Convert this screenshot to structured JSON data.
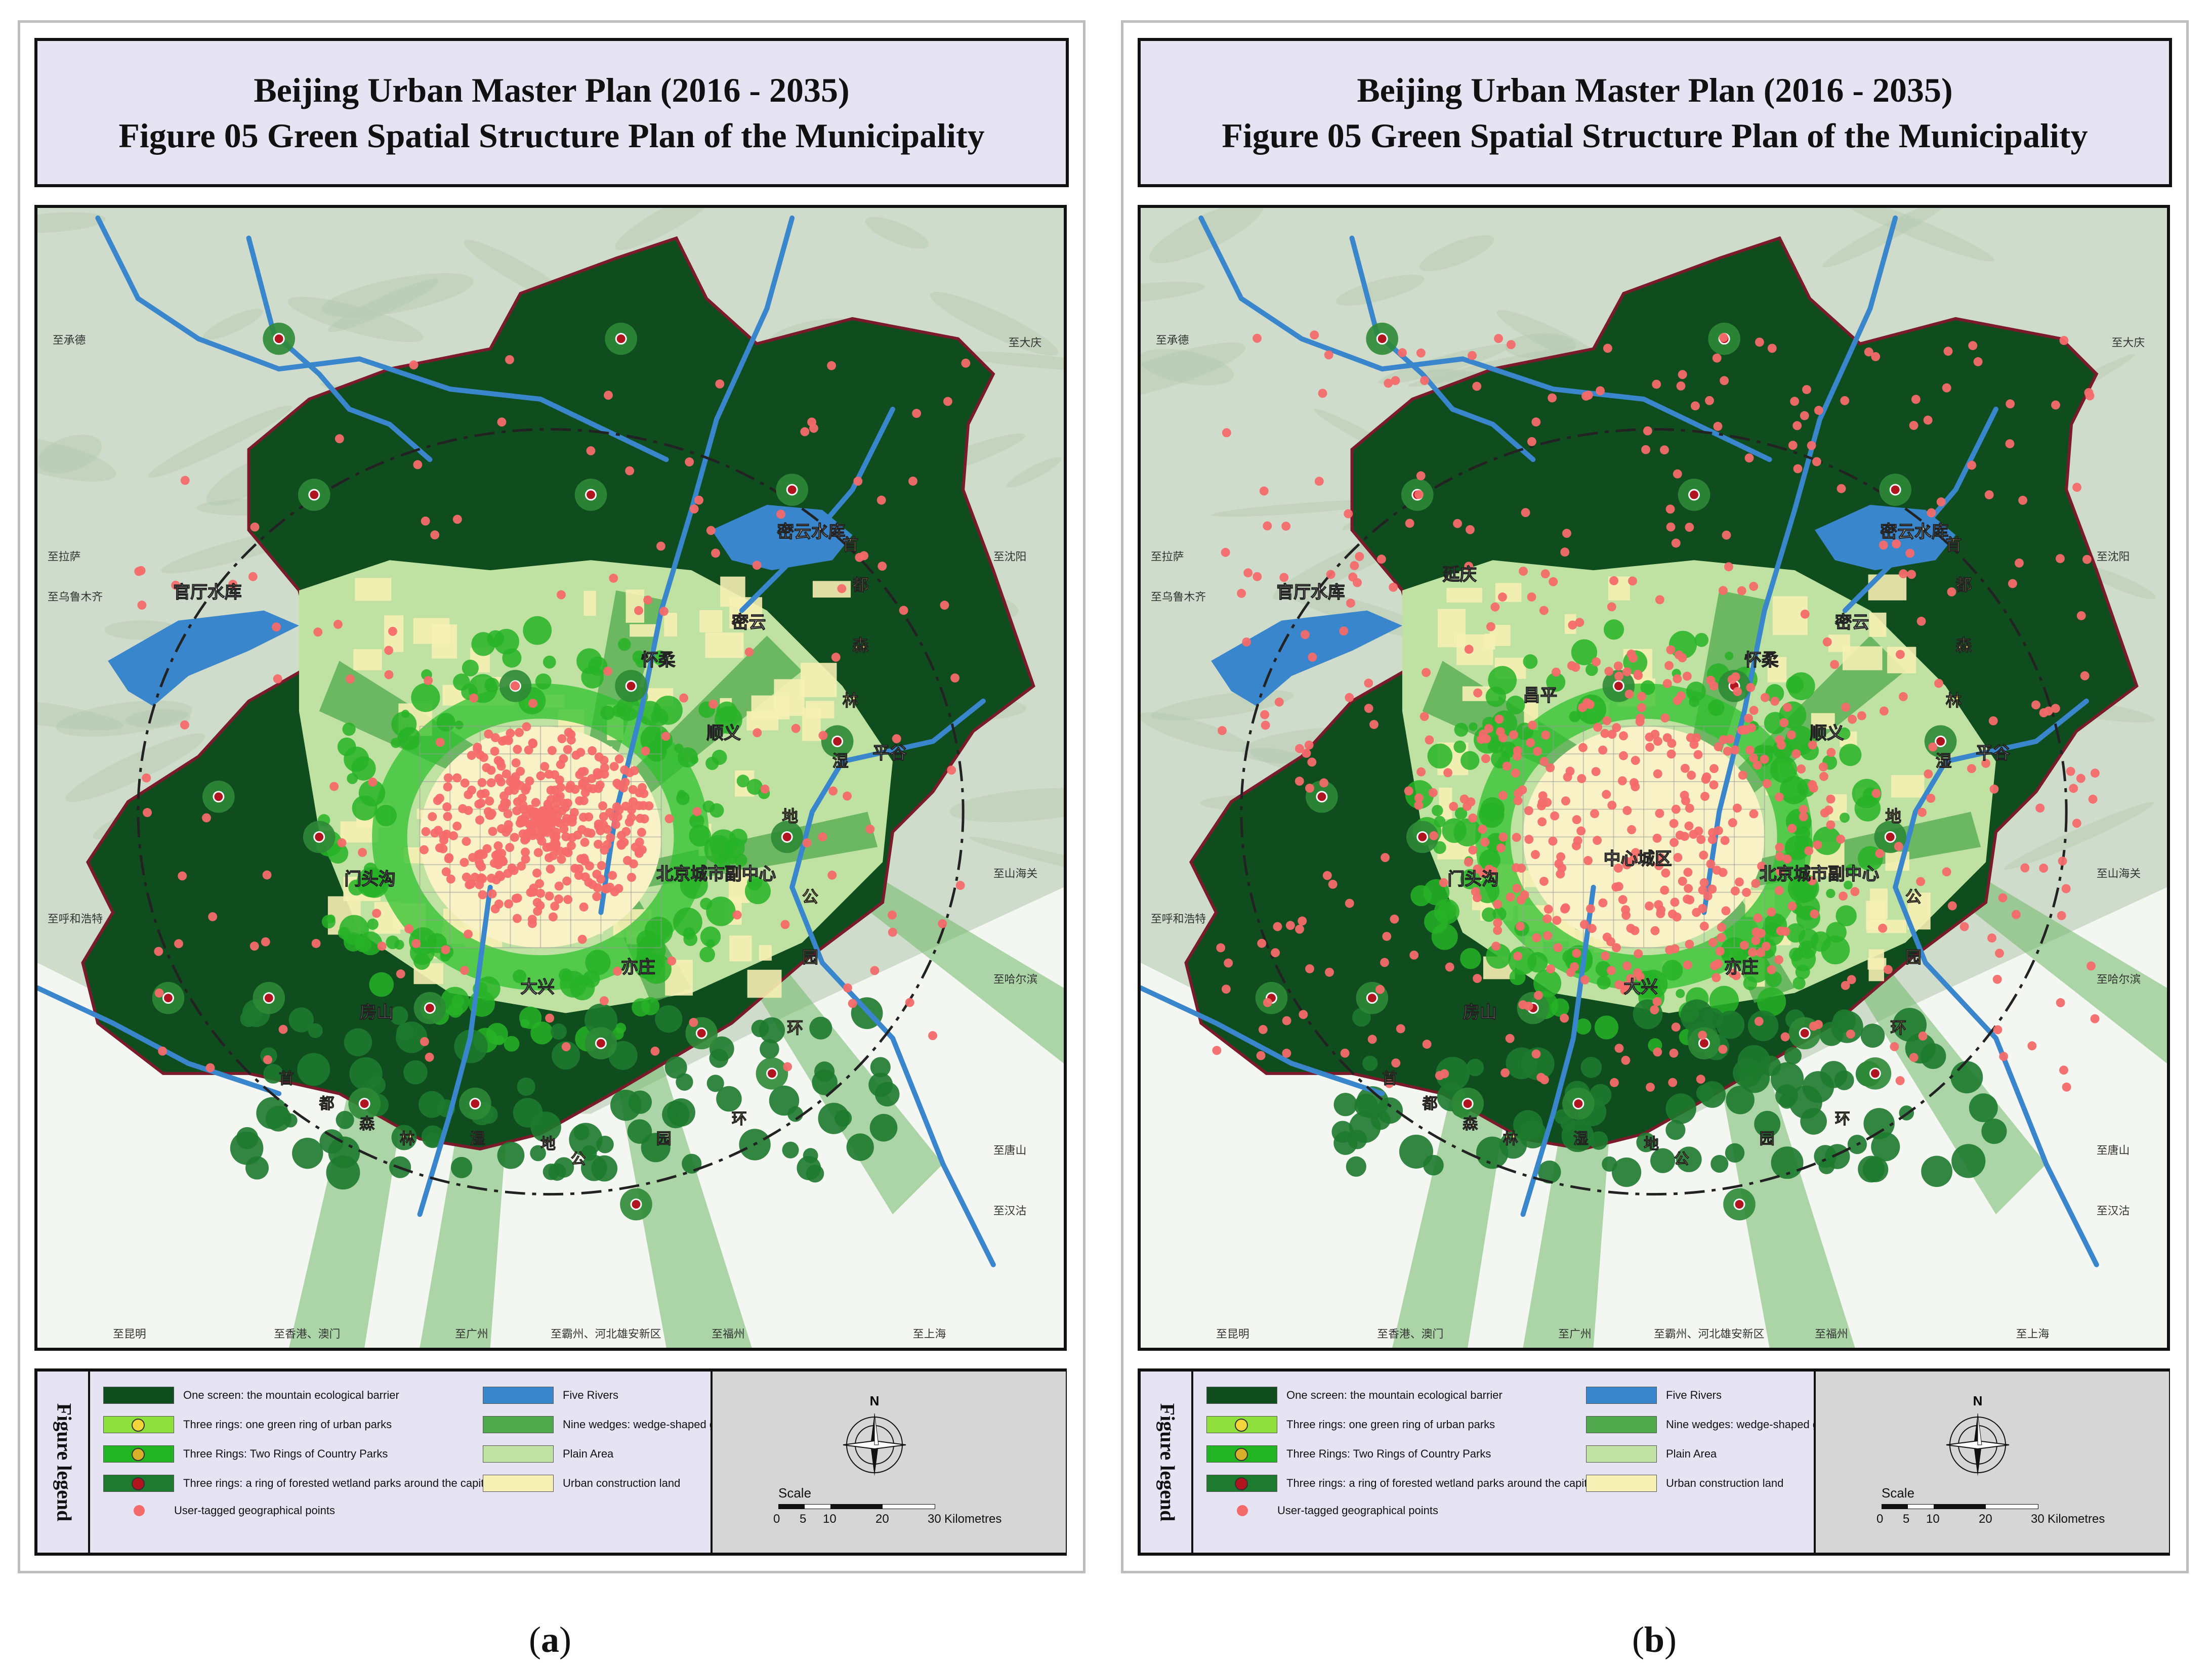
{
  "panels": [
    {
      "id": "a",
      "title_line1": "Beijing Urban Master Plan (2016 - 2035)",
      "title_line2": "Figure 05 Green Spatial Structure Plan of the Municipality",
      "caption_open": "(",
      "caption_letter": "a",
      "caption_close": ")",
      "district_labels": [
        "官厅水库",
        "密云水库",
        "怀柔",
        "密云",
        "顺义",
        "平谷",
        "门头沟",
        "房山",
        "大兴",
        "亦庄",
        "北京城市副中心"
      ],
      "direction_labels": [
        "至承德",
        "至大庆",
        "至拉萨",
        "至乌鲁木齐",
        "至呼和浩特",
        "至沈阳",
        "至山海关",
        "至哈尔滨",
        "至唐山",
        "至汉沽",
        "至昆明",
        "至香港、澳门",
        "至广州",
        "至霸州、河北雄安新区",
        "至福州",
        "至上海"
      ],
      "point_density": "core"
    },
    {
      "id": "b",
      "title_line1": "Beijing Urban Master Plan (2016 - 2035)",
      "title_line2": "Figure 05 Green Spatial Structure Plan of the Municipality",
      "caption_open": "(",
      "caption_letter": "b",
      "caption_close": ")",
      "district_labels": [
        "官厅水库",
        "密云水库",
        "延庆",
        "怀柔",
        "密云",
        "昌平",
        "顺义",
        "平谷",
        "中心城区",
        "门头沟",
        "房山",
        "大兴",
        "亦庄",
        "北京城市副中心"
      ],
      "direction_labels": [
        "至承德",
        "至大庆",
        "至拉萨",
        "至乌鲁木齐",
        "至呼和浩特",
        "至沈阳",
        "至山海关",
        "至哈尔滨",
        "至唐山",
        "至汉沽",
        "至昆明",
        "至香港、澳门",
        "至广州",
        "至霸州、河北雄安新区",
        "至福州",
        "至上海"
      ],
      "point_density": "spread"
    }
  ],
  "ring_labels": [
    "首",
    "都",
    "森",
    "林",
    "湿",
    "地",
    "公",
    "园",
    "环"
  ],
  "legend": {
    "heading": "Figure legend",
    "items_left": [
      {
        "label": "One screen: the mountain ecological barrier",
        "swatch": "#0f4d1e",
        "dot": null
      },
      {
        "label": "Three rings: one green ring of urban parks",
        "swatch": "#8fe03c",
        "dot": "#f2d53a"
      },
      {
        "label": "Three Rings: Two Rings of Country Parks",
        "swatch": "#22b422",
        "dot": "#d8b02a"
      },
      {
        "label": "Three rings: a ring of forested wetland parks around the capital",
        "swatch": "#1d7a2e",
        "dot": "#b0141e"
      }
    ],
    "point_label": "User-tagged geographical points",
    "point_color": "#f46a6a",
    "items_right": [
      {
        "label": "Five Rivers",
        "swatch": "#3a86cc"
      },
      {
        "label": "Nine wedges: wedge-shaped green corridors",
        "swatch": "#4fa84c"
      },
      {
        "label": "Plain Area",
        "swatch": "#bfe2a2"
      },
      {
        "label": "Urban construction land",
        "swatch": "#f6efb4"
      }
    ],
    "compass_label": "N",
    "scale_label": "Scale",
    "scale_ticks": [
      "0",
      "5",
      "10",
      "20",
      "30"
    ],
    "scale_unit": "Kilometres"
  },
  "colors": {
    "mountain": "#0f4d1e",
    "plain": "#bfe2a2",
    "urban": "#f6efb4",
    "river": "#3a86cc",
    "terrain": "#cfdccb",
    "forest_park": "#1d7a2e",
    "point": "#f46a6a",
    "park_dot": "#b0141e"
  }
}
